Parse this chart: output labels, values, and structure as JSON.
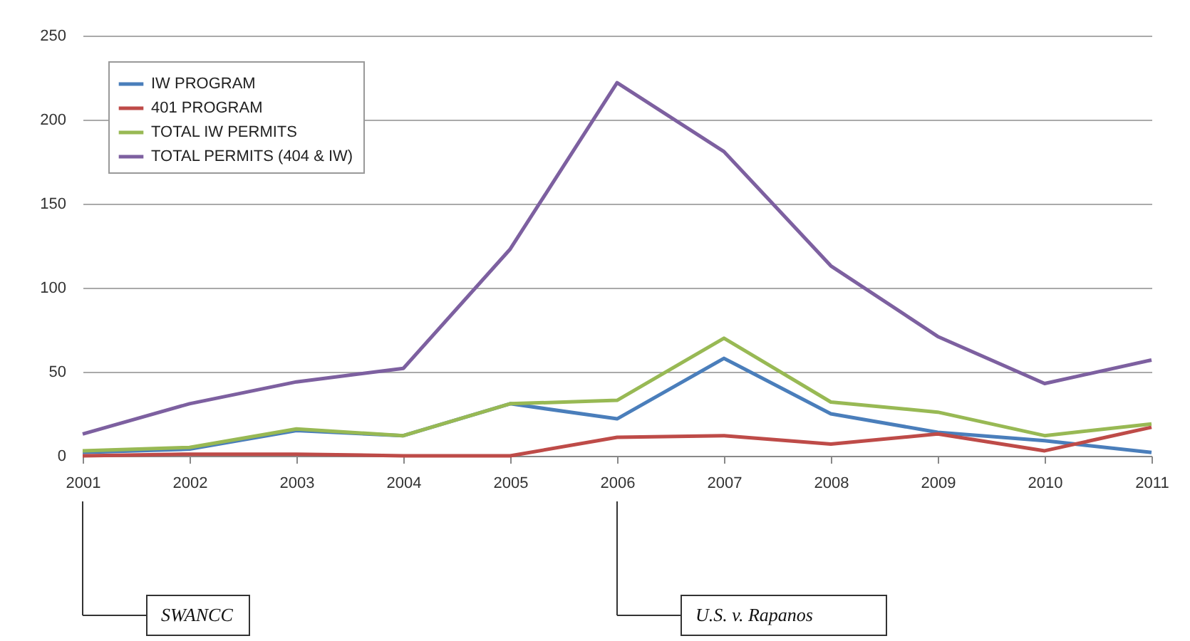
{
  "chart_data": {
    "type": "line",
    "categories": [
      "2001",
      "2002",
      "2003",
      "2004",
      "2005",
      "2006",
      "2007",
      "2008",
      "2009",
      "2010",
      "2011"
    ],
    "series": [
      {
        "name": "IW PROGRAM",
        "color": "#4a7ebb",
        "values": [
          2,
          4,
          15,
          12,
          31,
          22,
          58,
          25,
          14,
          9,
          2
        ]
      },
      {
        "name": "401 PROGRAM",
        "color": "#be4b48",
        "values": [
          0,
          1,
          1,
          0,
          0,
          11,
          12,
          7,
          13,
          3,
          17
        ]
      },
      {
        "name": "TOTAL IW PERMITS",
        "color": "#98b954",
        "values": [
          3,
          5,
          16,
          12,
          31,
          33,
          70,
          32,
          26,
          12,
          19
        ]
      },
      {
        "name": "TOTAL PERMITS (404 & IW)",
        "color": "#7d60a0",
        "values": [
          13,
          31,
          44,
          52,
          123,
          222,
          181,
          113,
          71,
          43,
          57
        ]
      }
    ],
    "ylim": [
      0,
      250
    ],
    "yticks": [
      0,
      50,
      100,
      150,
      200,
      250
    ],
    "grid": "y",
    "legend": "top left",
    "line_style": "solid",
    "marker": "none",
    "annotations": [
      "SWANCC",
      "U.S. v. Rapanos"
    ]
  }
}
